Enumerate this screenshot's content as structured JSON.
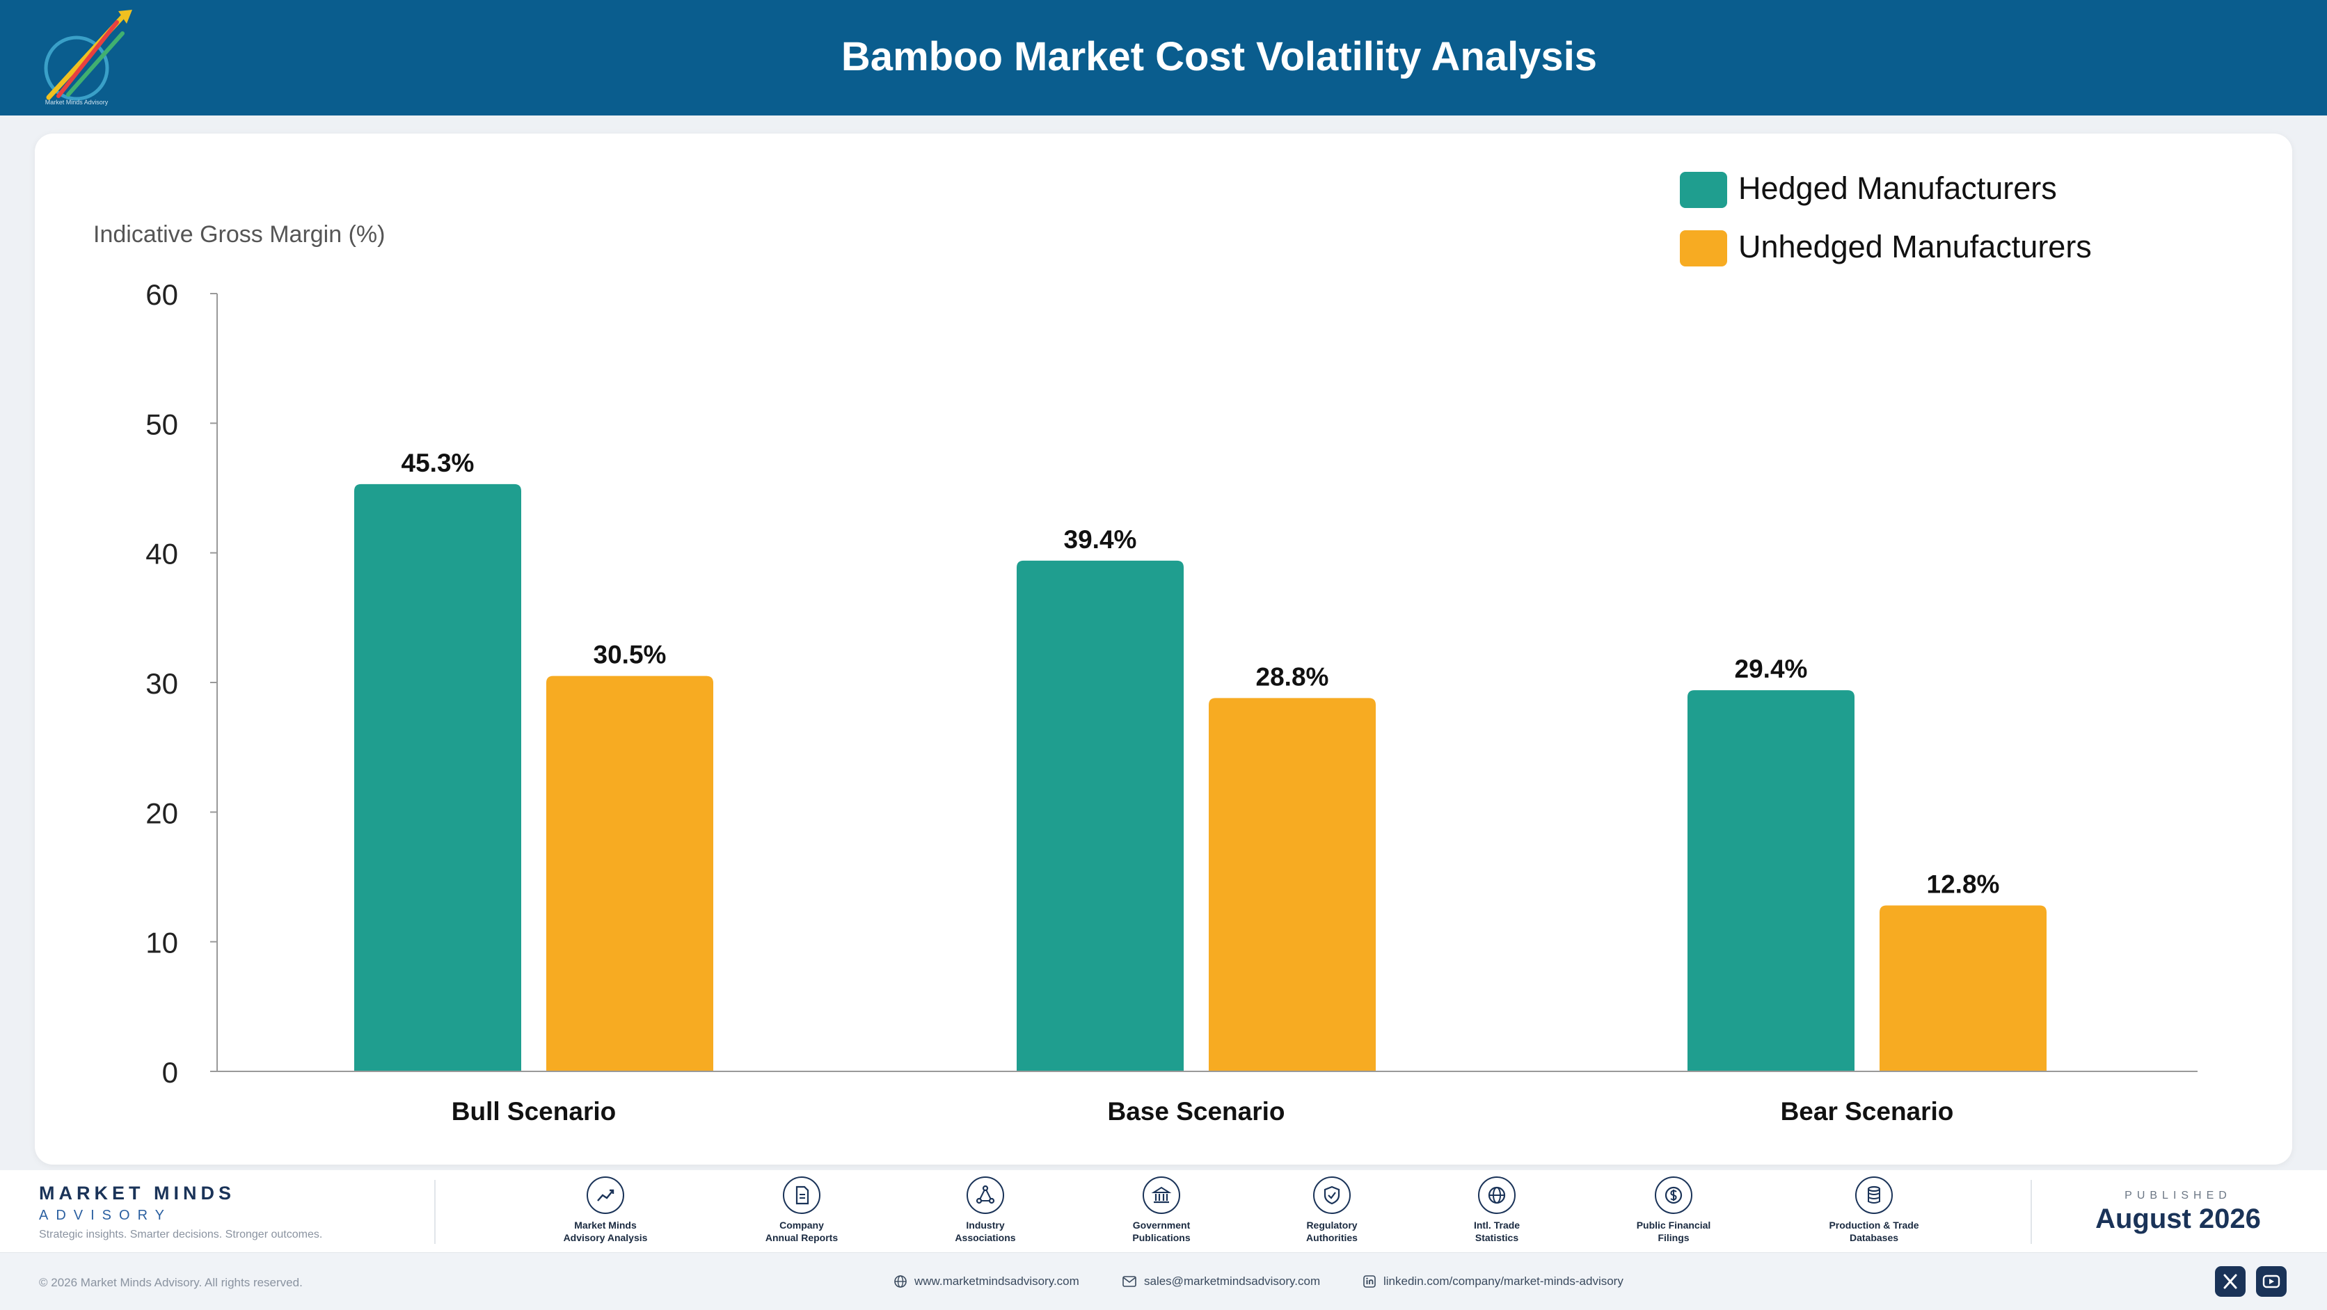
{
  "header": {
    "title": "Bamboo Market Cost Volatility Analysis",
    "logo_text": "Market Minds Advisory"
  },
  "colors": {
    "header_bg": "#0a5d8e",
    "hedged": "#1f9e8f",
    "unhedged": "#f7ab22",
    "navy": "#1a3358"
  },
  "chart_data": {
    "type": "bar",
    "title": "",
    "ylabel": "Indicative Gross Margin (%)",
    "xlabel": "",
    "categories": [
      "Bull Scenario",
      "Base Scenario",
      "Bear Scenario"
    ],
    "series": [
      {
        "name": "Hedged Manufacturers",
        "values": [
          45.3,
          39.4,
          29.4
        ],
        "labels": [
          "45.3%",
          "39.4%",
          "29.4%"
        ],
        "color": "#1f9e8f"
      },
      {
        "name": "Unhedged Manufacturers",
        "values": [
          30.5,
          28.8,
          12.8
        ],
        "labels": [
          "30.5%",
          "28.8%",
          "12.8%"
        ],
        "color": "#f7ab22"
      }
    ],
    "ylim": [
      0,
      60
    ],
    "yticks": [
      0,
      10,
      20,
      30,
      40,
      50,
      60
    ],
    "grid": false,
    "legend_position": "top-right"
  },
  "footer": {
    "brand_name": "MARKET MINDS",
    "brand_sub": "ADVISORY",
    "tagline": "Strategic insights. Smarter decisions. Stronger outcomes.",
    "sources": [
      {
        "label": "Market Minds\nAdvisory Analysis",
        "icon": "trend-chart-icon"
      },
      {
        "label": "Company\nAnnual Reports",
        "icon": "document-icon"
      },
      {
        "label": "Industry\nAssociations",
        "icon": "network-icon"
      },
      {
        "label": "Government\nPublications",
        "icon": "government-building-icon"
      },
      {
        "label": "Regulatory\nAuthorities",
        "icon": "shield-check-icon"
      },
      {
        "label": "Intl. Trade\nStatistics",
        "icon": "globe-icon"
      },
      {
        "label": "Public Financial\nFilings",
        "icon": "dollar-coin-icon"
      },
      {
        "label": "Production & Trade\nDatabases",
        "icon": "database-icon"
      }
    ],
    "published_label": "PUBLISHED",
    "published_date": "August 2026",
    "copyright": "© 2026 Market Minds Advisory. All rights reserved.",
    "website": "www.marketmindsadvisory.com",
    "email": "sales@marketmindsadvisory.com",
    "linkedin": "linkedin.com/company/market-minds-advisory",
    "social": [
      "x-icon",
      "youtube-icon"
    ]
  }
}
